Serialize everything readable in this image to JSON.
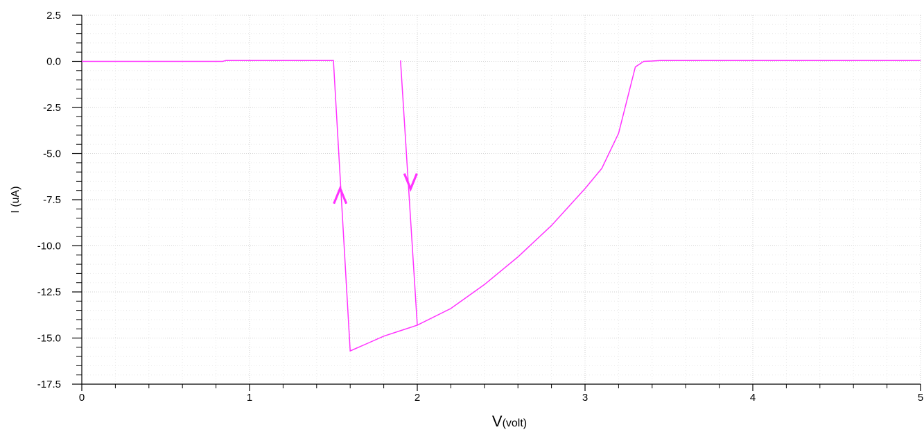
{
  "chart_data": {
    "type": "line",
    "xlabel_main": "V",
    "xlabel_sub": "(volt)",
    "ylabel": "I (uA)",
    "xlim": [
      0,
      5
    ],
    "ylim": [
      -17.5,
      2.5
    ],
    "x_ticks": [
      "0",
      "1",
      "2",
      "3",
      "4",
      "5"
    ],
    "y_ticks": [
      "2.5",
      "0.0",
      "-2.5",
      "-5.0",
      "-7.5",
      "-10.0",
      "-12.5",
      "-15.0",
      "-17.5"
    ],
    "grid": true,
    "color": "#ff33ff",
    "series": [
      {
        "x": [
          0,
          0.84,
          0.86,
          1.5,
          1.6,
          1.7,
          1.8,
          1.9,
          2.0,
          2.2,
          2.4,
          2.6,
          2.8,
          3.0,
          3.1,
          3.2,
          3.3,
          3.35,
          3.4,
          3.45,
          3.5,
          4.0,
          5.0
        ],
        "y": [
          0,
          0,
          0.05,
          0.05,
          -15.7,
          -15.3,
          -14.9,
          -14.6,
          -14.3,
          -13.4,
          -12.1,
          -10.6,
          -8.9,
          -6.9,
          -5.8,
          -3.9,
          -0.3,
          0.0,
          0.02,
          0.05,
          0.05,
          0.05,
          0.05
        ]
      },
      {
        "x": [
          1.9,
          2.0
        ],
        "y": [
          0.05,
          -14.3
        ]
      }
    ],
    "annotations": [
      {
        "glyph": "^",
        "x": 1.54,
        "y": -7.3,
        "meaning": "up-arrow"
      },
      {
        "glyph": "v",
        "x": 1.96,
        "y": -6.5,
        "meaning": "down-arrow"
      }
    ]
  }
}
